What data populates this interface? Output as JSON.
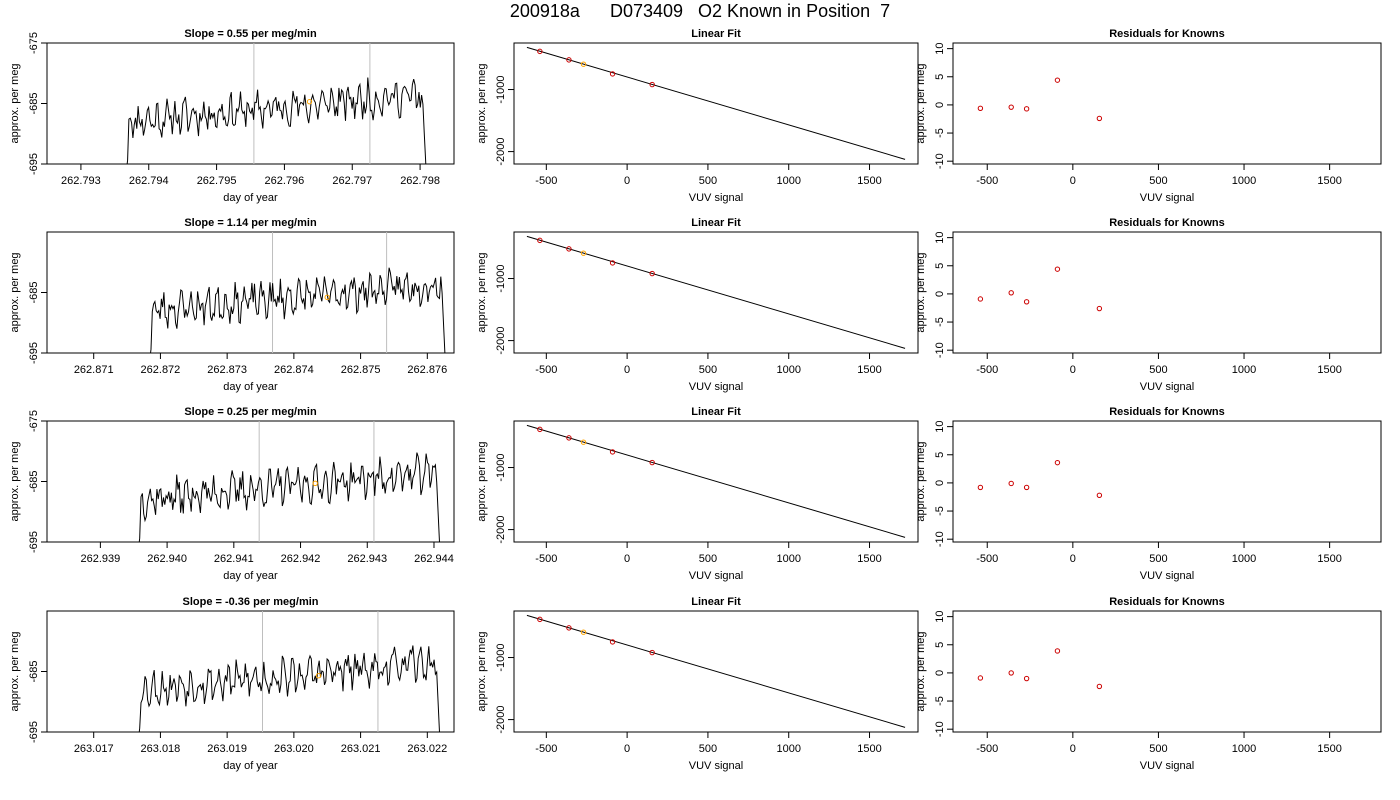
{
  "page_title": "200918a      D073409   O2 Known in Position  7",
  "colors": {
    "trace": "#000000",
    "vline": "#bebebe",
    "point_red": "#cc0000",
    "point_orange": "#ffa500",
    "fit_line": "#000000"
  },
  "chart_data": [
    {
      "row": 0,
      "panel": "time",
      "type": "line",
      "title": "Slope =  0.55  per meg/min",
      "xlabel": "day of year",
      "ylabel": "approx. per meg",
      "xlim": [
        262.7925,
        262.7985
      ],
      "ylim": [
        -695,
        -675
      ],
      "xticks": [
        "262.793",
        "262.794",
        "262.795",
        "262.796",
        "262.797",
        "262.798"
      ],
      "yticks": [
        "-675",
        "-685",
        "-695"
      ],
      "x_start": 262.79365,
      "x_end": 262.7981,
      "seed": 11,
      "vlines": [
        262.79555,
        262.79726
      ],
      "marker": {
        "x": 262.79637,
        "y": -684.7
      }
    },
    {
      "row": 0,
      "panel": "fit",
      "type": "scatter",
      "title": "Linear Fit",
      "xlabel": "VUV signal",
      "ylabel": "approx. per meg",
      "xlim": [
        -700,
        1800
      ],
      "ylim": [
        -2200,
        -250
      ],
      "xticks": [
        "-500",
        "0",
        "500",
        "1000",
        "1500"
      ],
      "yticks": [
        "-1000",
        "-2000"
      ],
      "line": {
        "x": [
          -620,
          1720
        ],
        "y": [
          -320,
          -2125
        ]
      },
      "points": {
        "x": [
          -540,
          -360,
          -270,
          -90,
          155
        ],
        "y": [
          -385,
          -522,
          -592,
          -748,
          -920
        ]
      },
      "highlight_index": 2
    },
    {
      "row": 0,
      "panel": "resid",
      "type": "scatter",
      "title": "Residuals for Knowns",
      "xlabel": "VUV signal",
      "ylabel": "approx. per meg",
      "xlim": [
        -700,
        1800
      ],
      "ylim": [
        -10.5,
        11
      ],
      "xticks": [
        "-500",
        "0",
        "500",
        "1000",
        "1500"
      ],
      "yticks": [
        "10",
        "5",
        "0",
        "-5",
        "-10"
      ],
      "points": {
        "x": [
          -540,
          -360,
          -270,
          -90,
          155
        ],
        "y": [
          -0.6,
          -0.4,
          -0.7,
          4.4,
          -2.4
        ]
      }
    },
    {
      "row": 1,
      "panel": "time",
      "type": "line",
      "title": "Slope =  1.14  per meg/min",
      "xlabel": "day of year",
      "ylabel": "approx. per meg",
      "xlim": [
        262.8703,
        262.8764
      ],
      "ylim": [
        -695,
        -675
      ],
      "xticks": [
        "262.871",
        "262.872",
        "262.873",
        "262.874",
        "262.875",
        "262.876"
      ],
      "yticks": [
        "-685",
        "-695"
      ],
      "x_start": 262.87182,
      "x_end": 262.87628,
      "seed": 23,
      "vlines": [
        262.87368,
        262.87539
      ],
      "marker": {
        "x": 262.8745,
        "y": -685.8
      }
    },
    {
      "row": 1,
      "panel": "fit",
      "type": "scatter",
      "title": "Linear Fit",
      "xlabel": "VUV signal",
      "ylabel": "approx. per meg",
      "xlim": [
        -700,
        1800
      ],
      "ylim": [
        -2200,
        -250
      ],
      "xticks": [
        "-500",
        "0",
        "500",
        "1000",
        "1500"
      ],
      "yticks": [
        "-1000",
        "-2000"
      ],
      "line": {
        "x": [
          -620,
          1720
        ],
        "y": [
          -320,
          -2125
        ]
      },
      "points": {
        "x": [
          -540,
          -360,
          -270,
          -90,
          155
        ],
        "y": [
          -385,
          -522,
          -592,
          -748,
          -920
        ]
      },
      "highlight_index": 2
    },
    {
      "row": 1,
      "panel": "resid",
      "type": "scatter",
      "title": "Residuals for Knowns",
      "xlabel": "VUV signal",
      "ylabel": "approx. per meg",
      "xlim": [
        -700,
        1800
      ],
      "ylim": [
        -10.5,
        11
      ],
      "xticks": [
        "-500",
        "0",
        "500",
        "1000",
        "1500"
      ],
      "yticks": [
        "10",
        "5",
        "0",
        "-5",
        "-10"
      ],
      "points": {
        "x": [
          -540,
          -360,
          -270,
          -90,
          155
        ],
        "y": [
          -0.9,
          0.2,
          -1.4,
          4.4,
          -2.6
        ]
      }
    },
    {
      "row": 2,
      "panel": "time",
      "type": "line",
      "title": "Slope =  0.25  per meg/min",
      "xlabel": "day of year",
      "ylabel": "approx. per meg",
      "xlim": [
        262.9382,
        262.9443
      ],
      "ylim": [
        -695,
        -675
      ],
      "xticks": [
        "262.939",
        "262.940",
        "262.941",
        "262.942",
        "262.943",
        "262.944"
      ],
      "yticks": [
        "-675",
        "-685",
        "-695"
      ],
      "x_start": 262.93955,
      "x_end": 262.9441,
      "seed": 37,
      "vlines": [
        262.94138,
        262.9431
      ],
      "marker": {
        "x": 262.94222,
        "y": -685.3
      }
    },
    {
      "row": 2,
      "panel": "fit",
      "type": "scatter",
      "title": "Linear Fit",
      "xlabel": "VUV signal",
      "ylabel": "approx. per meg",
      "xlim": [
        -700,
        1800
      ],
      "ylim": [
        -2200,
        -250
      ],
      "xticks": [
        "-500",
        "0",
        "500",
        "1000",
        "1500"
      ],
      "yticks": [
        "-1000",
        "-2000"
      ],
      "line": {
        "x": [
          -620,
          1720
        ],
        "y": [
          -320,
          -2125
        ]
      },
      "points": {
        "x": [
          -540,
          -360,
          -270,
          -90,
          155
        ],
        "y": [
          -385,
          -522,
          -592,
          -748,
          -920
        ]
      },
      "highlight_index": 2
    },
    {
      "row": 2,
      "panel": "resid",
      "type": "scatter",
      "title": "Residuals for Knowns",
      "xlabel": "VUV signal",
      "ylabel": "approx. per meg",
      "xlim": [
        -700,
        1800
      ],
      "ylim": [
        -10.5,
        11
      ],
      "xticks": [
        "-500",
        "0",
        "500",
        "1000",
        "1500"
      ],
      "yticks": [
        "10",
        "5",
        "0",
        "-5",
        "-10"
      ],
      "points": {
        "x": [
          -540,
          -360,
          -270,
          -90,
          155
        ],
        "y": [
          -0.8,
          -0.1,
          -0.8,
          3.6,
          -2.2
        ]
      }
    },
    {
      "row": 3,
      "panel": "time",
      "type": "line",
      "title": "Slope =  -0.36  per meg/min",
      "xlabel": "day of year",
      "ylabel": "approx. per meg",
      "xlim": [
        263.0163,
        263.0224
      ],
      "ylim": [
        -695,
        -675
      ],
      "xticks": [
        "263.017",
        "263.018",
        "263.019",
        "263.020",
        "263.021",
        "263.022"
      ],
      "yticks": [
        "-685",
        "-695"
      ],
      "x_start": 263.01765,
      "x_end": 263.0222,
      "seed": 53,
      "vlines": [
        263.01953,
        263.02126
      ],
      "marker": {
        "x": 263.02037,
        "y": -685.7
      }
    },
    {
      "row": 3,
      "panel": "fit",
      "type": "scatter",
      "title": "Linear Fit",
      "xlabel": "VUV signal",
      "ylabel": "approx. per meg",
      "xlim": [
        -700,
        1800
      ],
      "ylim": [
        -2200,
        -250
      ],
      "xticks": [
        "-500",
        "0",
        "500",
        "1000",
        "1500"
      ],
      "yticks": [
        "-1000",
        "-2000"
      ],
      "line": {
        "x": [
          -620,
          1720
        ],
        "y": [
          -320,
          -2125
        ]
      },
      "points": {
        "x": [
          -540,
          -360,
          -270,
          -90,
          155
        ],
        "y": [
          -385,
          -522,
          -592,
          -748,
          -920
        ]
      },
      "highlight_index": 2
    },
    {
      "row": 3,
      "panel": "resid",
      "type": "scatter",
      "title": "Residuals for Knowns",
      "xlabel": "VUV signal",
      "ylabel": "approx. per meg",
      "xlim": [
        -700,
        1800
      ],
      "ylim": [
        -10.5,
        11
      ],
      "xticks": [
        "-500",
        "0",
        "500",
        "1000",
        "1500"
      ],
      "yticks": [
        "10",
        "5",
        "0",
        "-5",
        "-10"
      ],
      "points": {
        "x": [
          -540,
          -360,
          -270,
          -90,
          155
        ],
        "y": [
          -0.9,
          0.0,
          -1.0,
          3.9,
          -2.4
        ]
      }
    }
  ]
}
